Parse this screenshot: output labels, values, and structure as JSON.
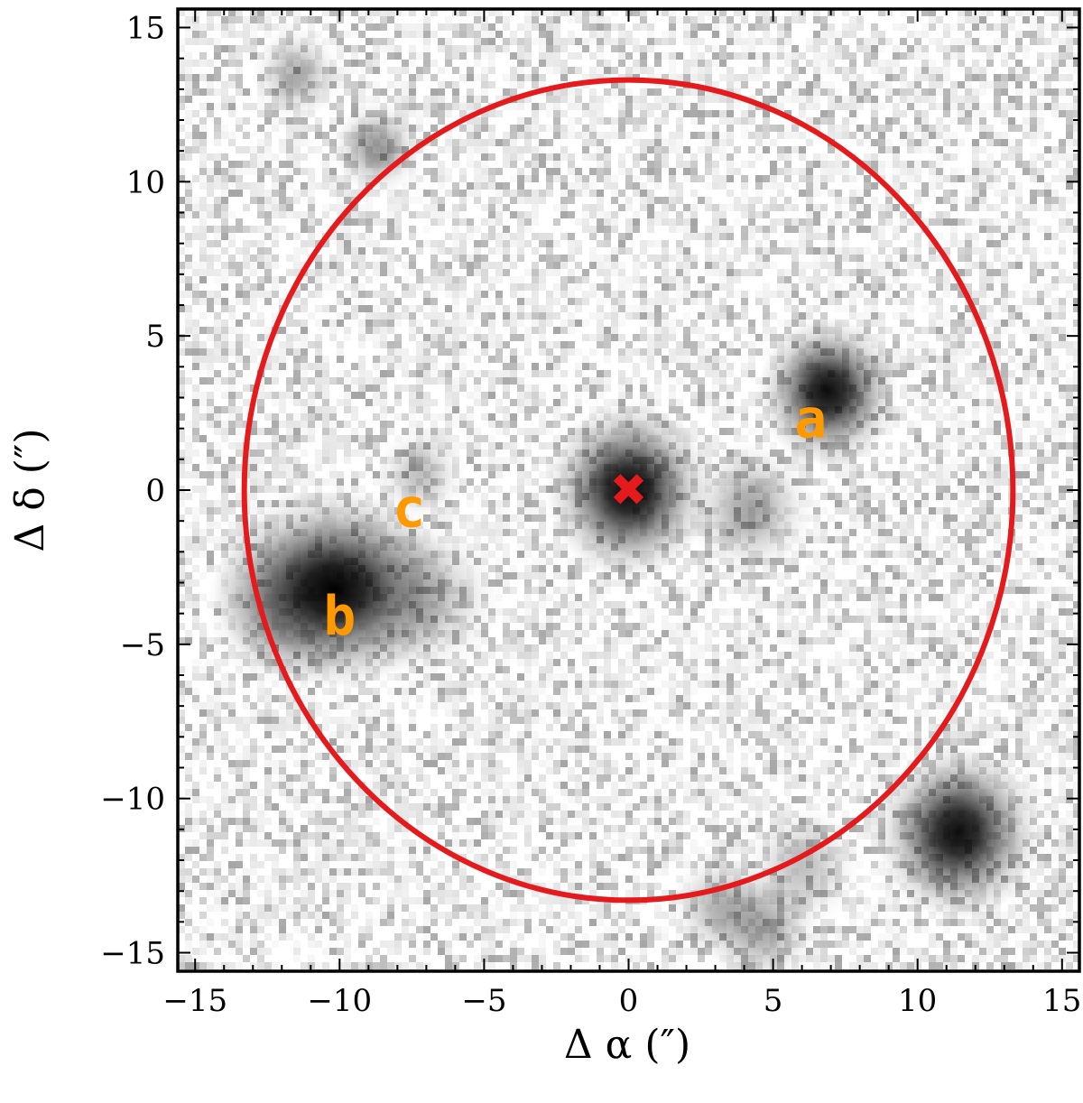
{
  "figure": {
    "xlabel": "Δ α  (″)",
    "ylabel": "Δ δ  (″)",
    "xlim": [
      -15.6,
      15.6
    ],
    "ylim": [
      -15.6,
      15.6
    ],
    "x_ticks": [
      {
        "value": -15,
        "label": "−15"
      },
      {
        "value": -10,
        "label": "−10"
      },
      {
        "value": -5,
        "label": "−5"
      },
      {
        "value": 0,
        "label": "0"
      },
      {
        "value": 5,
        "label": "5"
      },
      {
        "value": 10,
        "label": "10"
      },
      {
        "value": 15,
        "label": "15"
      }
    ],
    "y_ticks": [
      {
        "value": 15,
        "label": "15"
      },
      {
        "value": 10,
        "label": "10"
      },
      {
        "value": 5,
        "label": "5"
      },
      {
        "value": 0,
        "label": "0"
      },
      {
        "value": -5,
        "label": "−5"
      },
      {
        "value": -10,
        "label": "−10"
      },
      {
        "value": -15,
        "label": "−15"
      }
    ],
    "aperture": {
      "center": [
        0,
        0
      ],
      "radius": 13.3,
      "color": "#e41a1c"
    },
    "center_marker": {
      "position": [
        0,
        0
      ],
      "symbol": "✖",
      "color": "#e41a1c"
    },
    "label_color": "#ff9900",
    "sources": [
      {
        "label": "a",
        "position": [
          6.9,
          3.2
        ],
        "label_position": [
          6.3,
          2.3
        ],
        "intensity": 0.95,
        "sigma": 1.1
      },
      {
        "label": "b",
        "position": [
          -10.2,
          -3.2
        ],
        "label_position": [
          -10.0,
          -4.1
        ],
        "intensity": 1.0,
        "sigma": 1.9
      },
      {
        "label": "c",
        "position": [
          -7.2,
          0.5
        ],
        "label_position": [
          -7.6,
          -0.6
        ],
        "intensity": 0.25,
        "sigma": 0.7
      }
    ],
    "other_objects": [
      {
        "position": [
          0,
          0
        ],
        "intensity": 0.98,
        "sigma": 1.3
      },
      {
        "position": [
          11.4,
          -11.1
        ],
        "intensity": 0.95,
        "sigma": 1.3
      },
      {
        "position": [
          4.2,
          -0.6
        ],
        "intensity": 0.35,
        "sigma": 1.0
      },
      {
        "position": [
          4.6,
          -14.2
        ],
        "intensity": 0.35,
        "sigma": 0.9
      },
      {
        "position": [
          3.2,
          -13.5
        ],
        "intensity": 0.3,
        "sigma": 0.8
      },
      {
        "position": [
          6.0,
          -12.2
        ],
        "intensity": 0.25,
        "sigma": 0.9
      },
      {
        "position": [
          -8.7,
          11.1
        ],
        "intensity": 0.4,
        "sigma": 0.7
      },
      {
        "position": [
          -11.5,
          13.5
        ],
        "intensity": 0.3,
        "sigma": 0.7
      },
      {
        "position": [
          -12.0,
          -3.8
        ],
        "intensity": 0.3,
        "sigma": 1.2
      },
      {
        "position": [
          -7.0,
          -3.5
        ],
        "intensity": 0.25,
        "sigma": 1.2
      }
    ]
  }
}
